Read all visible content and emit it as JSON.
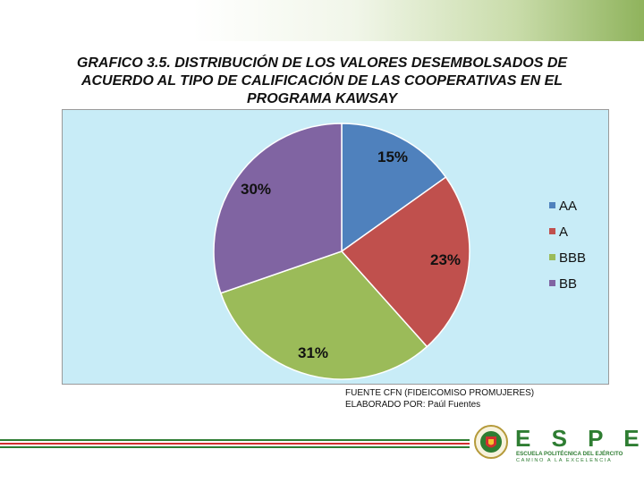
{
  "title": {
    "line1": "GRAFICO 3.5. DISTRIBUCIÓN DE LOS VALORES DESEMBOLSADOS DE",
    "line2": "ACUERDO AL TIPO DE CALIFICACIÓN DE LAS COOPERATIVAS EN EL",
    "line3": "PROGRAMA KAWSAY"
  },
  "chart_data": {
    "type": "pie",
    "title": "GRAFICO 3.5. DISTRIBUCIÓN DE LOS VALORES DESEMBOLSADOS DE ACUERDO AL TIPO DE CALIFICACIÓN DE LAS COOPERATIVAS EN EL PROGRAMA KAWSAY",
    "categories": [
      "AA",
      "A",
      "BBB",
      "BB"
    ],
    "values": [
      15,
      23,
      31,
      30
    ],
    "labels": [
      "15%",
      "23%",
      "31%",
      "30%"
    ],
    "colors": [
      "#4f81bd",
      "#c0504d",
      "#9bbb59",
      "#8064a2"
    ],
    "legend_position": "right",
    "background": "#c8ecf7"
  },
  "source": {
    "line1": "FUENTE CFN (FIDEICOMISO PROMUJERES)",
    "line2": "ELABORADO POR: Paúl Fuentes"
  },
  "logo": {
    "letters": "E S P E",
    "name": "ESCUELA POLITÉCNICA DEL EJÉRCITO",
    "tagline": "CAMINO A LA EXCELENCIA"
  },
  "accent_colors": {
    "green": "#2e7d32",
    "red": "#d32f2f"
  }
}
